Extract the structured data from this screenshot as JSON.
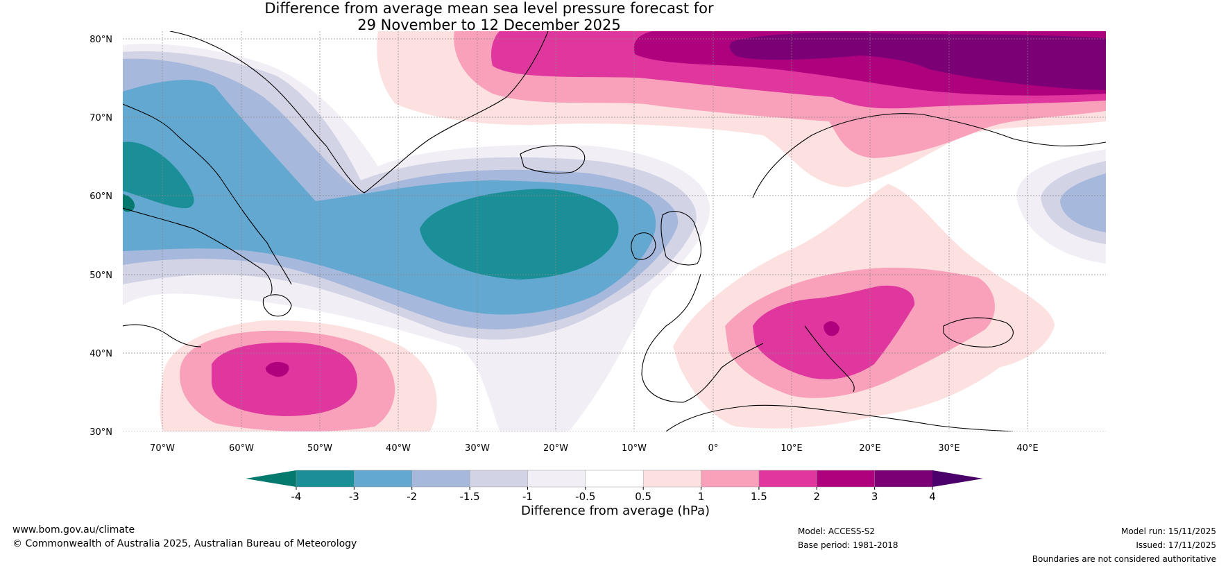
{
  "title": {
    "line1": "Difference from average mean sea level pressure forecast for",
    "line2": "29 November to 12 December 2025"
  },
  "map": {
    "lat_ticks": [
      "80°N",
      "70°N",
      "60°N",
      "50°N",
      "40°N",
      "30°N"
    ],
    "lon_ticks": [
      "70°W",
      "60°W",
      "50°W",
      "40°W",
      "30°W",
      "20°W",
      "10°W",
      "0°",
      "10°E",
      "20°E",
      "30°E",
      "40°E"
    ],
    "extent": {
      "lon_min": -75,
      "lon_max": 50,
      "lat_min": 30,
      "lat_max": 81
    }
  },
  "colorbar": {
    "label": "Difference from average (hPa)",
    "ticks": [
      "-4",
      "-3",
      "-2",
      "-1.5",
      "-1",
      "-0.5",
      "0.5",
      "1",
      "1.5",
      "2",
      "3",
      "4"
    ],
    "under_color": "#04796d",
    "over_color": "#4a0068",
    "colors": [
      "#1b8f97",
      "#63a8d0",
      "#a6b9dc",
      "#d3d3e6",
      "#f1eef5",
      "#ffffff",
      "#fde0e0",
      "#f9a0bb",
      "#e0379e",
      "#ad017e",
      "#7b0075"
    ]
  },
  "footer": {
    "website": "www.bom.gov.au/climate",
    "copyright": "© Commonwealth of Australia 2025, Australian Bureau of Meteorology",
    "model": "Model: ACCESS-S2",
    "base_period": "Base period: 1981-2018",
    "model_run": "Model run: 15/11/2025",
    "issued": "Issued: 17/11/2025",
    "disclaimer": "Boundaries are not considered authoritative"
  }
}
